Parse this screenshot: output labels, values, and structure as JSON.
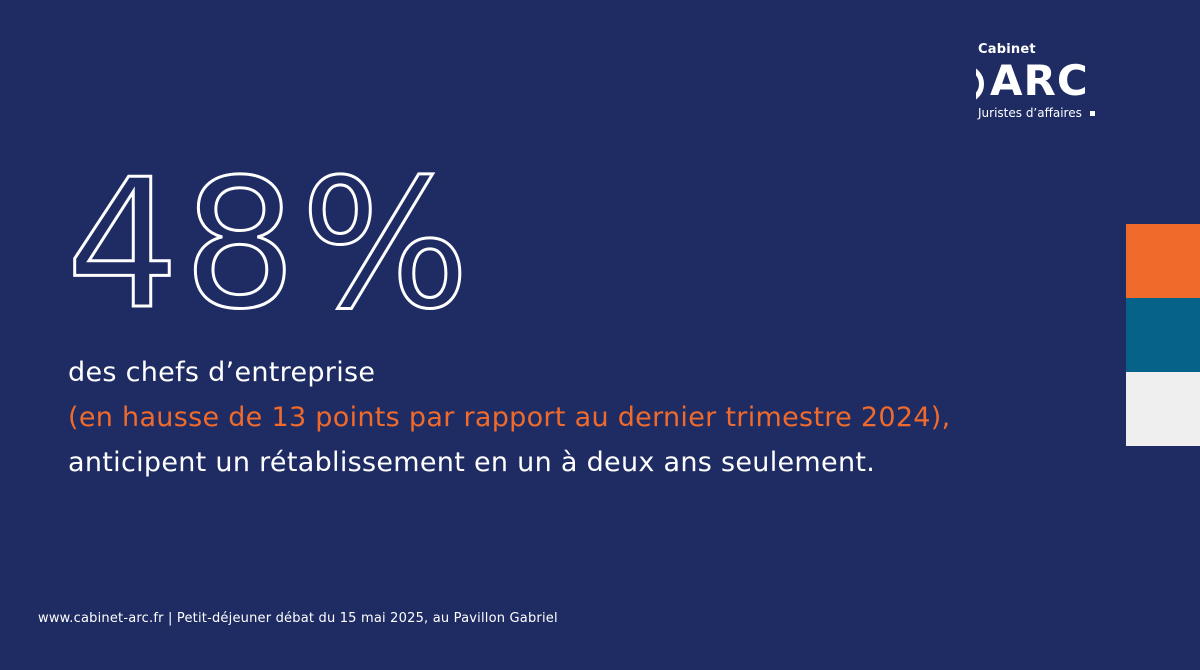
{
  "logo": {
    "top_text": "Cabinet",
    "word": "ARC",
    "subtitle": "Juristes d’affaires"
  },
  "stat": {
    "value": "48%"
  },
  "statement": {
    "line1": "des chefs d’entreprise",
    "line2": "(en hausse de 13 points par rapport au dernier trimestre 2024),",
    "line3": "anticipent un rétablissement en un à deux ans seulement."
  },
  "footer": {
    "text": "www.cabinet-arc.fr | Petit-déjeuner débat du 15 mai 2025, au Pavillon Gabriel"
  },
  "colors": {
    "background": "#1f2c64",
    "accent_orange": "#ef6a2b",
    "accent_teal": "#07628a",
    "light_gray": "#efefef"
  }
}
